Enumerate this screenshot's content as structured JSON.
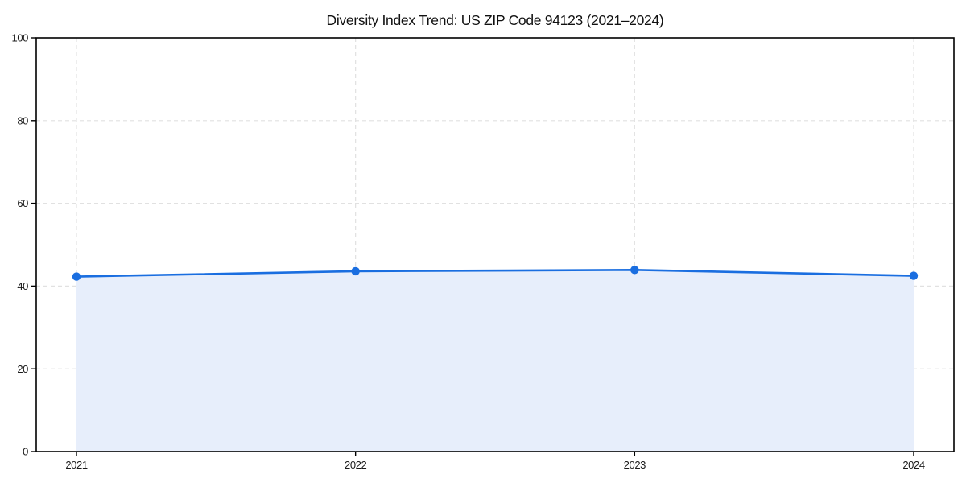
{
  "chart_data": {
    "type": "area",
    "title": "Diversity Index Trend: US ZIP Code 94123 (2021–2024)",
    "categories": [
      "2021",
      "2022",
      "2023",
      "2024"
    ],
    "series": [
      {
        "name": "Diversity Index",
        "values": [
          42.3,
          43.6,
          43.9,
          42.5
        ]
      }
    ],
    "xlabel": "",
    "ylabel": "",
    "ylim": [
      0,
      100
    ],
    "yticks": [
      0,
      20,
      40,
      60,
      80,
      100
    ],
    "grid": true,
    "grid_style": "dashed",
    "legend": false,
    "marker": "circle",
    "colors": {
      "line": "#1a6ee0",
      "fill": "#e7eefb",
      "grid": "#e1e1e1",
      "spine": "#000000",
      "text": "#1a1a1a"
    }
  }
}
